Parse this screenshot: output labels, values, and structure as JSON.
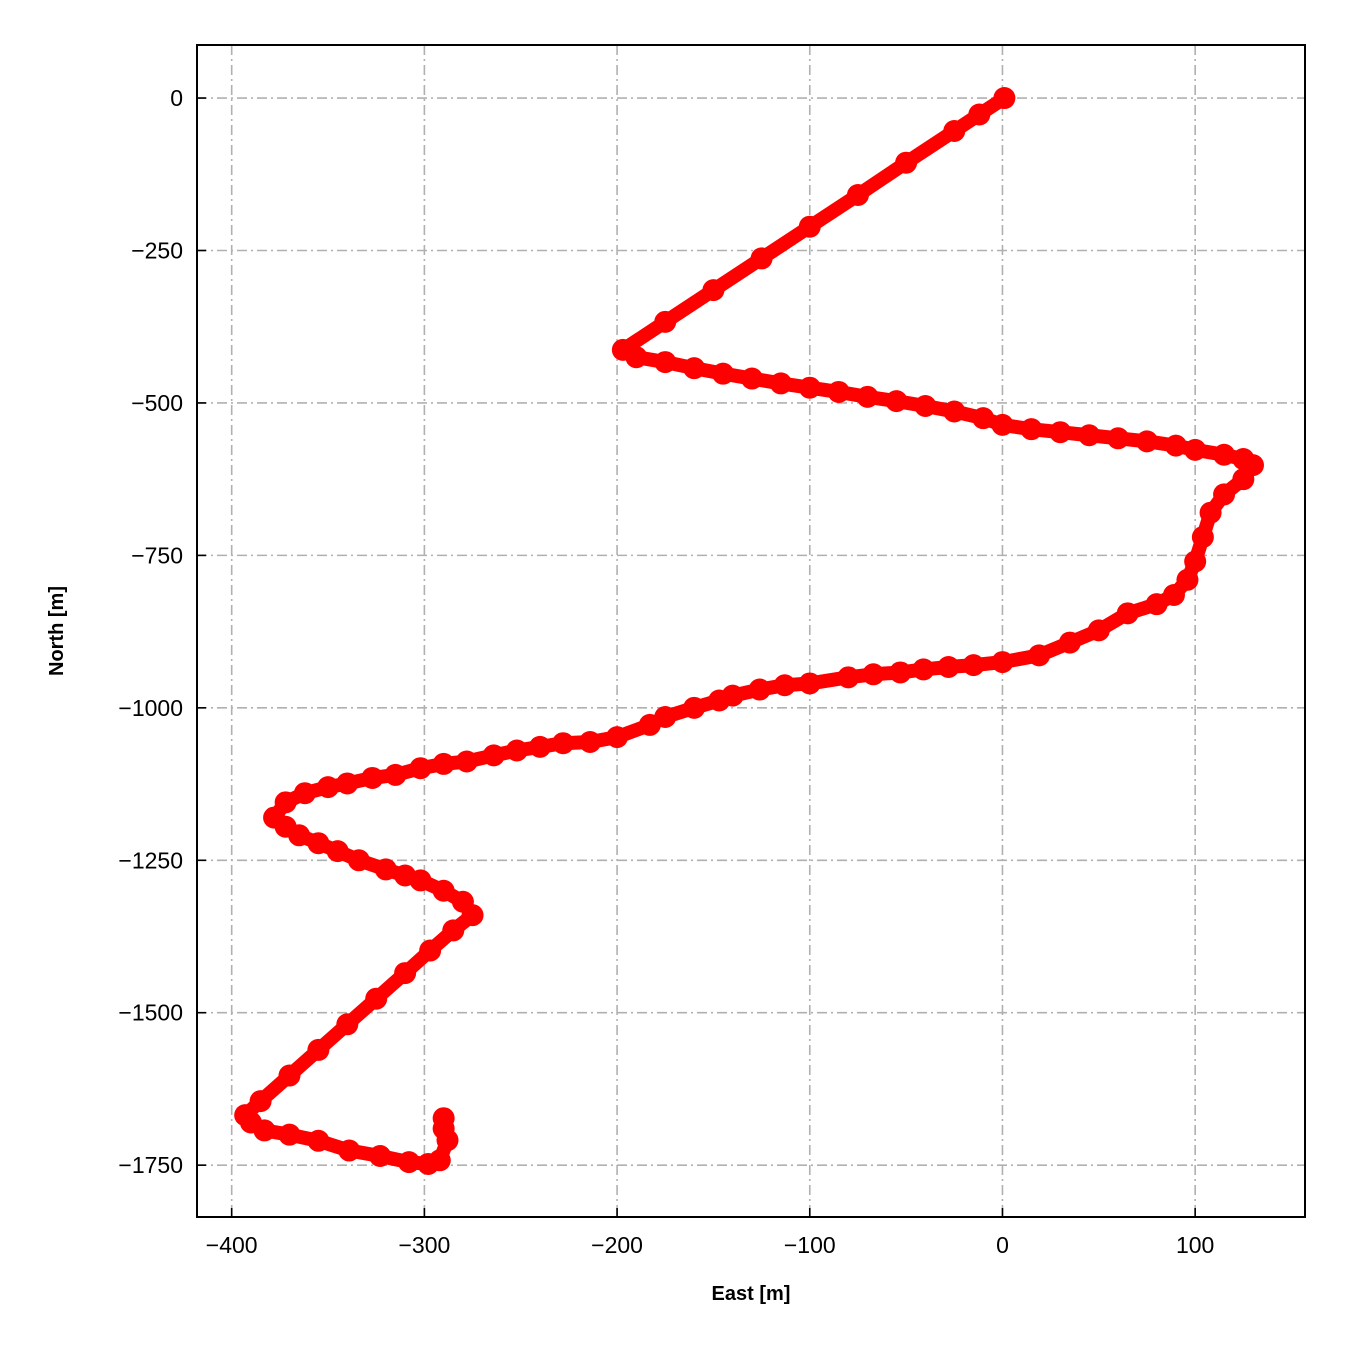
{
  "chart_data": {
    "type": "line",
    "title": "",
    "xlabel": "East [m]",
    "ylabel": "North [m]",
    "xlim": [
      -418,
      157
    ],
    "ylim": [
      -1835,
      87
    ],
    "xticks": [
      -400,
      -300,
      -200,
      -100,
      0,
      100
    ],
    "yticks": [
      0,
      -250,
      -500,
      -750,
      -1000,
      -1250,
      -1500,
      -1750
    ],
    "xtick_labels": [
      "−400",
      "−300",
      "−200",
      "−100",
      "0",
      "100"
    ],
    "ytick_labels": [
      "0",
      "−250",
      "−500",
      "−750",
      "−1000",
      "−1250",
      "−1500",
      "−1750"
    ],
    "grid": true,
    "grid_style": "dash-dot",
    "marker": "circle",
    "color": "#ff0000",
    "grid_color": "#b0b0b0",
    "series": [
      {
        "points": [
          [
            1,
            0
          ],
          [
            -12,
            -27
          ],
          [
            -25,
            -54
          ],
          [
            -50,
            -106
          ],
          [
            -75,
            -159
          ],
          [
            -100,
            -211
          ],
          [
            -125,
            -263
          ],
          [
            -150,
            -315
          ],
          [
            -175,
            -367
          ],
          [
            -197,
            -413
          ],
          [
            -190,
            -425
          ],
          [
            -175,
            -433
          ],
          [
            -160,
            -443
          ],
          [
            -145,
            -452
          ],
          [
            -130,
            -460
          ],
          [
            -115,
            -468
          ],
          [
            -100,
            -475
          ],
          [
            -85,
            -482
          ],
          [
            -70,
            -490
          ],
          [
            -55,
            -497
          ],
          [
            -40,
            -505
          ],
          [
            -25,
            -514
          ],
          [
            -10,
            -525
          ],
          [
            0,
            -536
          ],
          [
            15,
            -543
          ],
          [
            30,
            -548
          ],
          [
            45,
            -553
          ],
          [
            60,
            -558
          ],
          [
            75,
            -563
          ],
          [
            90,
            -570
          ],
          [
            100,
            -577
          ],
          [
            115,
            -585
          ],
          [
            125,
            -592
          ],
          [
            130,
            -602
          ],
          [
            125,
            -625
          ],
          [
            115,
            -650
          ],
          [
            108,
            -680
          ],
          [
            104,
            -720
          ],
          [
            100,
            -760
          ],
          [
            96,
            -790
          ],
          [
            89,
            -815
          ],
          [
            80,
            -830
          ],
          [
            65,
            -845
          ],
          [
            50,
            -873
          ],
          [
            35,
            -893
          ],
          [
            19,
            -914
          ],
          [
            0,
            -925
          ],
          [
            -15,
            -930
          ],
          [
            -28,
            -933
          ],
          [
            -41,
            -937
          ],
          [
            -53,
            -942
          ],
          [
            -67,
            -945
          ],
          [
            -80,
            -950
          ],
          [
            -100,
            -960
          ],
          [
            -113,
            -963
          ],
          [
            -126,
            -970
          ],
          [
            -140,
            -980
          ],
          [
            -147,
            -988
          ],
          [
            -160,
            -1000
          ],
          [
            -175,
            -1015
          ],
          [
            -183,
            -1028
          ],
          [
            -200,
            -1048
          ],
          [
            -214,
            -1056
          ],
          [
            -228,
            -1058
          ],
          [
            -240,
            -1064
          ],
          [
            -252,
            -1070
          ],
          [
            -264,
            -1078
          ],
          [
            -278,
            -1088
          ],
          [
            -290,
            -1092
          ],
          [
            -302,
            -1099
          ],
          [
            -315,
            -1110
          ],
          [
            -327,
            -1115
          ],
          [
            -340,
            -1124
          ],
          [
            -350,
            -1130
          ],
          [
            -362,
            -1140
          ],
          [
            -372,
            -1155
          ],
          [
            -378,
            -1180
          ],
          [
            -372,
            -1195
          ],
          [
            -365,
            -1209
          ],
          [
            -355,
            -1222
          ],
          [
            -345,
            -1235
          ],
          [
            -334,
            -1250
          ],
          [
            -320,
            -1265
          ],
          [
            -310,
            -1275
          ],
          [
            -302,
            -1283
          ],
          [
            -290,
            -1300
          ],
          [
            -280,
            -1318
          ],
          [
            -275,
            -1340
          ],
          [
            -285,
            -1365
          ],
          [
            -297,
            -1398
          ],
          [
            -310,
            -1435
          ],
          [
            -325,
            -1477
          ],
          [
            -340,
            -1519
          ],
          [
            -355,
            -1561
          ],
          [
            -370,
            -1603
          ],
          [
            -385,
            -1645
          ],
          [
            -393,
            -1668
          ],
          [
            -390,
            -1680
          ],
          [
            -383,
            -1693
          ],
          [
            -370,
            -1700
          ],
          [
            -355,
            -1710
          ],
          [
            -339,
            -1726
          ],
          [
            -323,
            -1735
          ],
          [
            -308,
            -1745
          ],
          [
            -298,
            -1748
          ],
          [
            -292,
            -1742
          ],
          [
            -288,
            -1709
          ],
          [
            -290,
            -1690
          ],
          [
            -290,
            -1673
          ]
        ]
      }
    ]
  }
}
